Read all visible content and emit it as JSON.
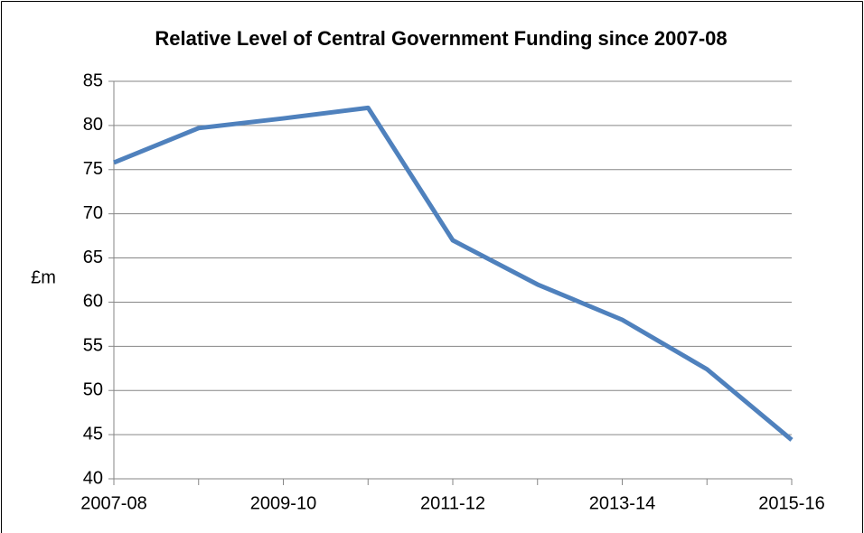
{
  "chart_data": {
    "type": "line",
    "title": "Relative Level of Central Government Funding since 2007-08",
    "y_label": "£m",
    "categories": [
      "2007-08",
      null,
      "2009-10",
      null,
      "2011-12",
      null,
      "2013-14",
      null,
      "2015-16"
    ],
    "values": [
      75.8,
      79.7,
      80.8,
      82,
      67,
      62,
      58,
      52.4,
      44.4
    ],
    "color": "#4f81bd",
    "ylim": [
      40,
      85
    ],
    "yticks": [
      40,
      45,
      50,
      55,
      60,
      65,
      70,
      75,
      80,
      85
    ],
    "grid": true
  }
}
